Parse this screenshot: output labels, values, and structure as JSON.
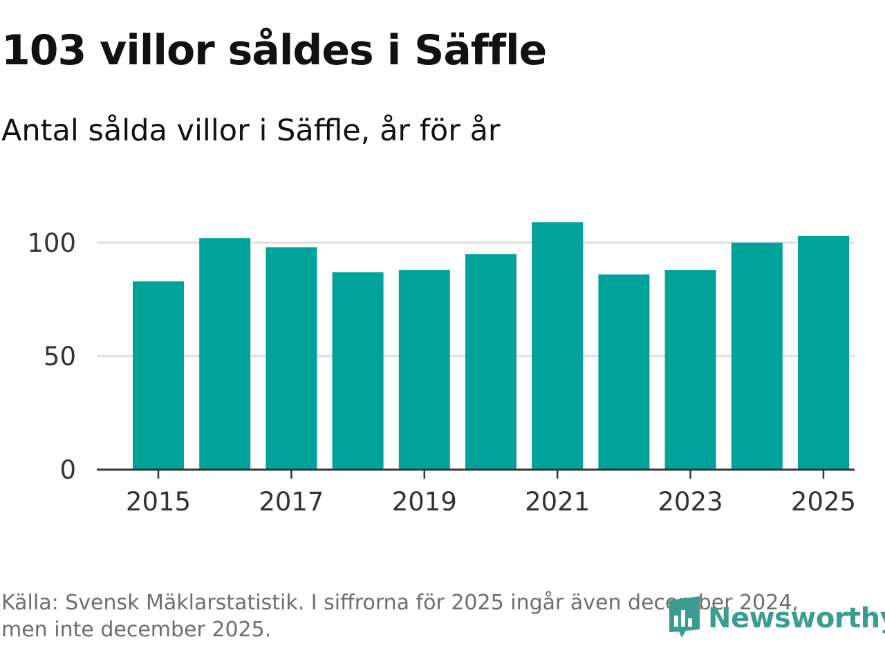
{
  "title": "103 villor såldes i Säffle",
  "subtitle": "Antal sålda villor i Säffle, år för år",
  "source": "Källa: Svensk Mäklarstatistik. I siffrorna för 2025 ingår även december 2024, men inte december 2025.",
  "logo": {
    "text": "Newsworthy",
    "icon": "newsworthy-logo-icon",
    "color": "#3a9d8f"
  },
  "colors": {
    "bar": "#00a39a",
    "grid": "#dddddd",
    "axis": "#333333",
    "text": "#333333"
  },
  "chart_data": {
    "type": "bar",
    "title": "Antal sålda villor i Säffle, år för år",
    "xlabel": "",
    "ylabel": "",
    "categories": [
      "2015",
      "2016",
      "2017",
      "2018",
      "2019",
      "2020",
      "2021",
      "2022",
      "2023",
      "2024",
      "2025"
    ],
    "values": [
      83,
      102,
      98,
      87,
      88,
      95,
      109,
      86,
      88,
      100,
      103
    ],
    "x_tick_labels": [
      "2015",
      "2017",
      "2019",
      "2021",
      "2023",
      "2025"
    ],
    "y_ticks": [
      0,
      50,
      100
    ],
    "ylim": [
      0,
      110
    ],
    "grid": true,
    "legend": "none"
  }
}
